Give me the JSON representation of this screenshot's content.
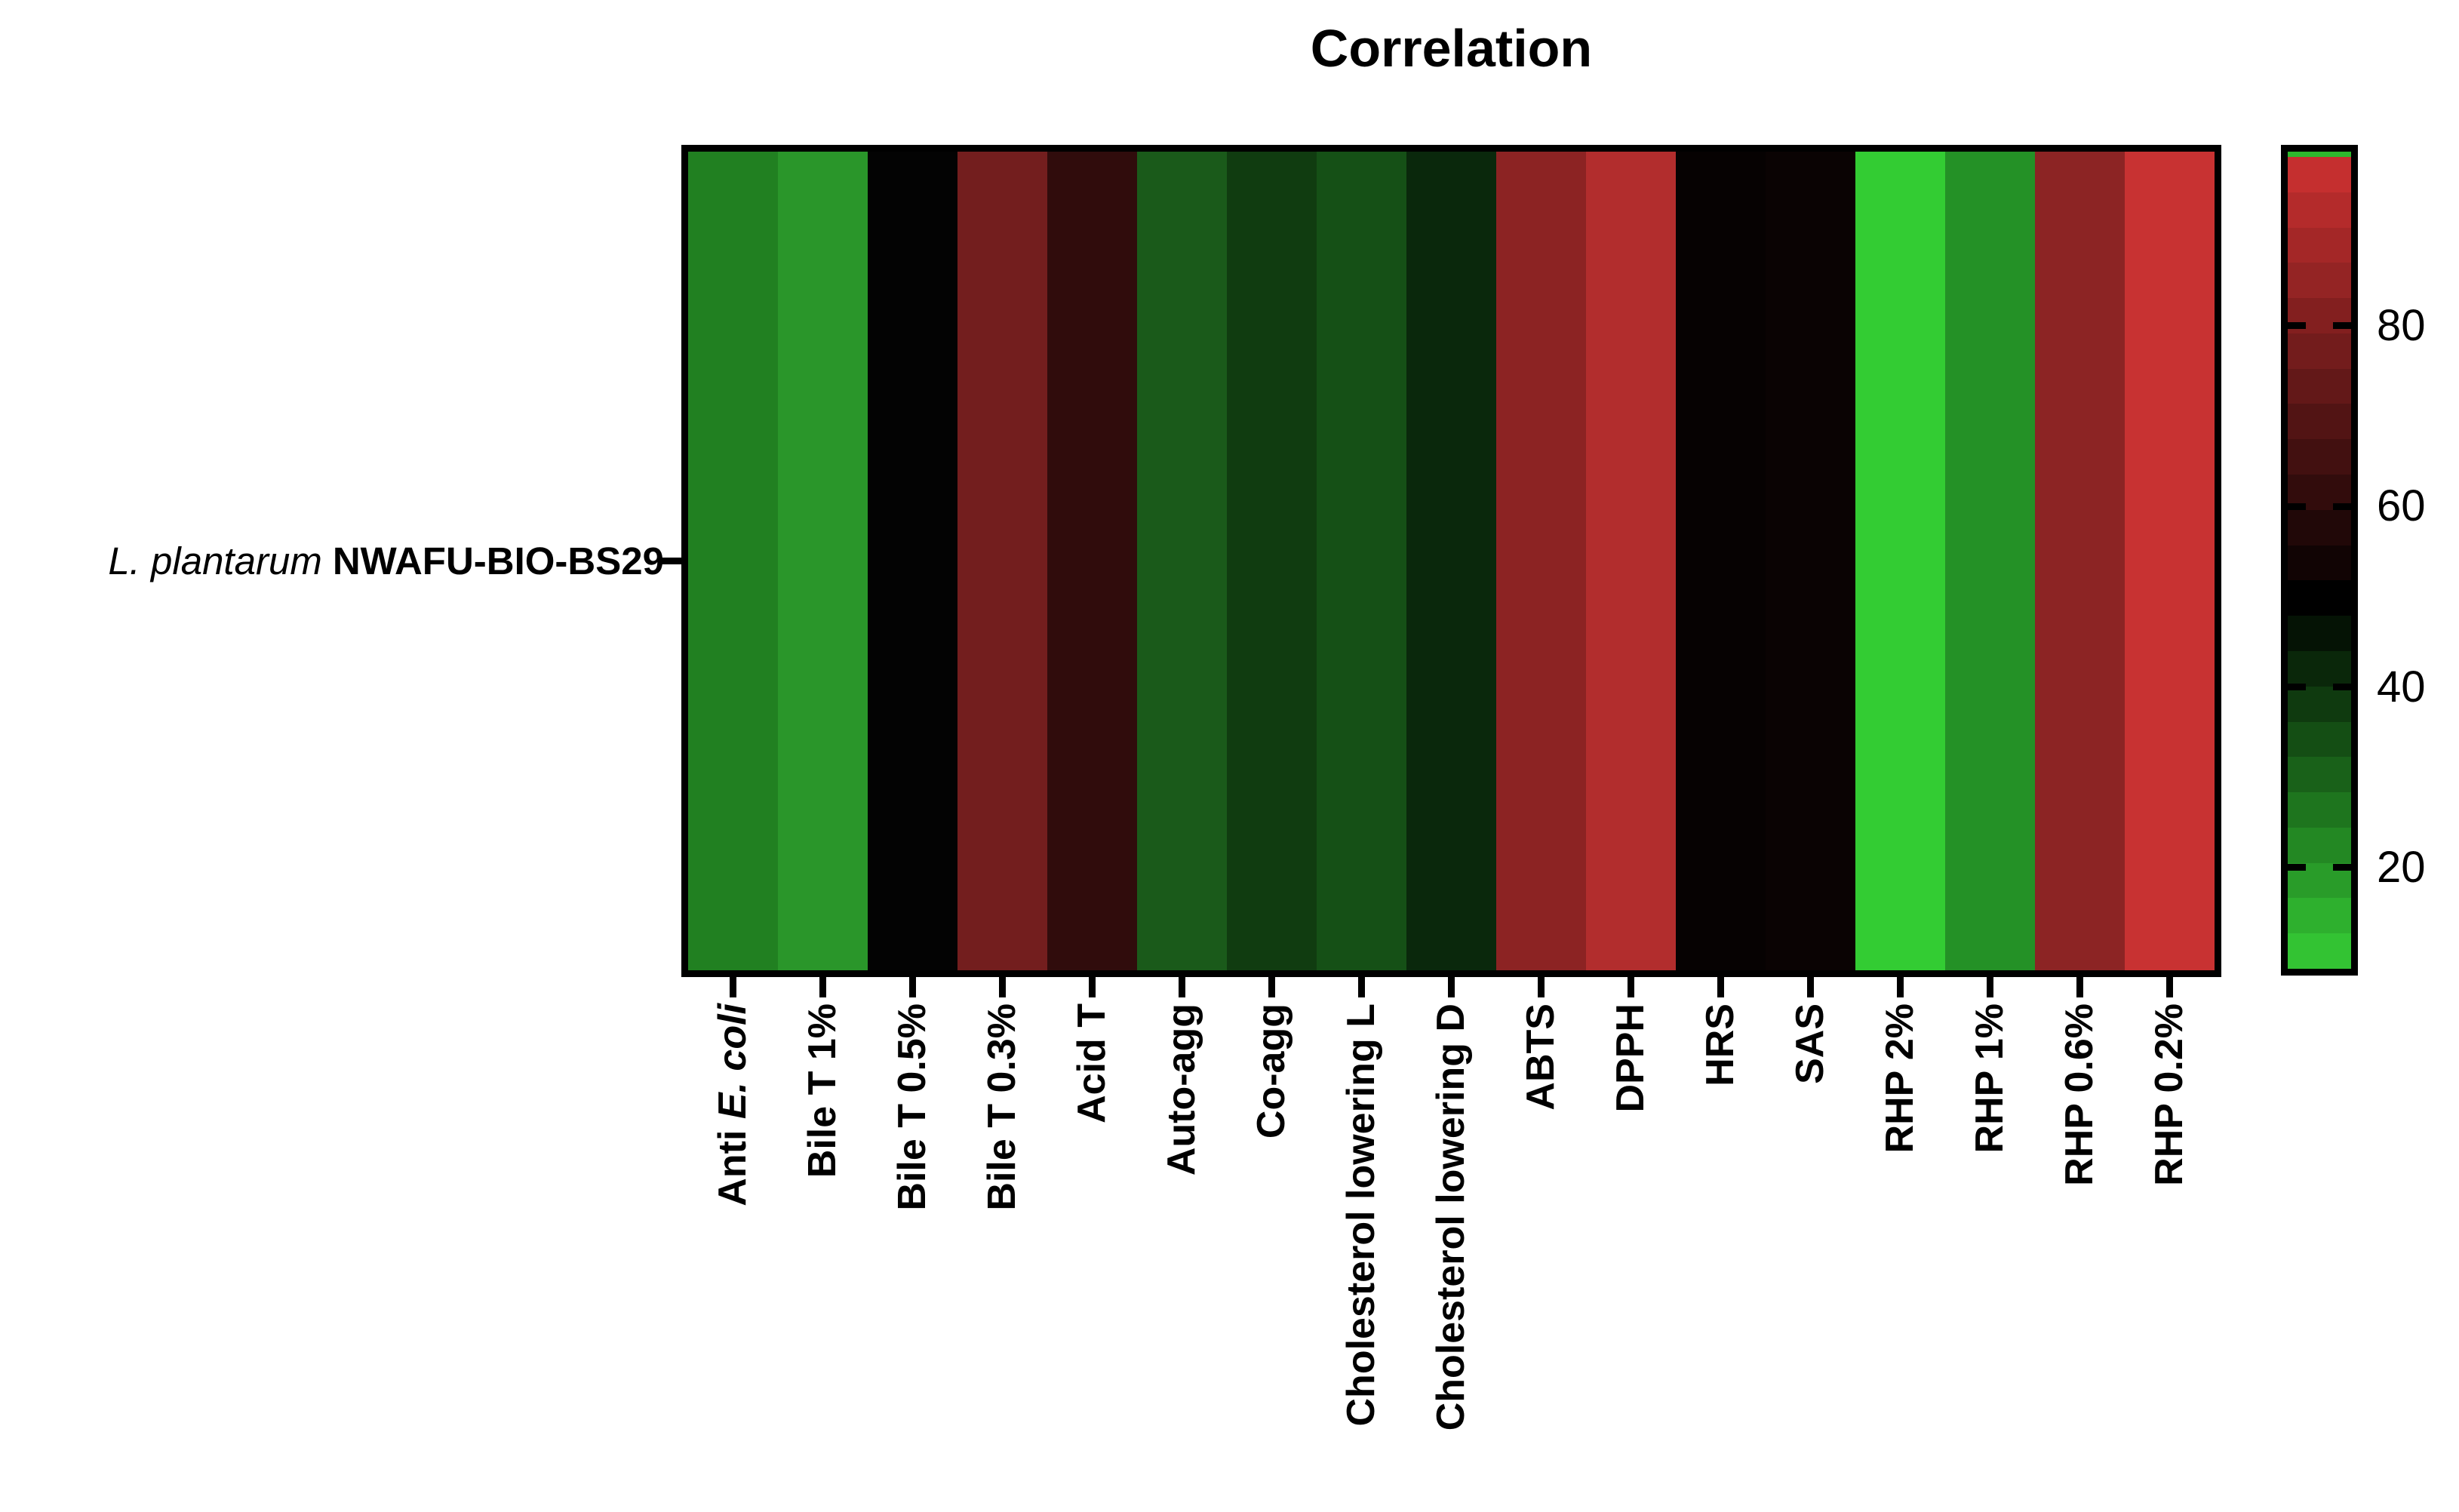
{
  "figure": {
    "row_label": {
      "italic": "L. plantarum",
      "bold": "NWAFU-BIO-BS29",
      "full": "L. plantarum NWAFU-BIO-BS29"
    },
    "colors": {
      "background": "#ffffff",
      "border": "#000000",
      "text": "#000000"
    }
  },
  "chart_data": {
    "type": "heatmap",
    "title": "Correlation",
    "rows": [
      "L. plantarum NWAFU-BIO-BS29"
    ],
    "legend_position": "right",
    "column_label_rotation": -90,
    "grid": false,
    "columns": [
      {
        "label": "Anti E. coli",
        "value": 24,
        "color": "#218021",
        "segments": [
          {
            "text": "Anti ",
            "italic": false
          },
          {
            "text": "E. coli",
            "italic": true
          }
        ]
      },
      {
        "label": "Bile T 1%",
        "value": 20,
        "color": "#2A962A"
      },
      {
        "label": "Bile T 0.5%",
        "value": 50,
        "color": "#030303"
      },
      {
        "label": "Bile T 0.3%",
        "value": 78,
        "color": "#731E1E"
      },
      {
        "label": "Acid T",
        "value": 62,
        "color": "#300C0C"
      },
      {
        "label": "Auto-agg",
        "value": 32,
        "color": "#1A5A1A"
      },
      {
        "label": "Co-agg",
        "value": 38,
        "color": "#103C10"
      },
      {
        "label": "Cholesterol lowering L",
        "value": 34,
        "color": "#155016"
      },
      {
        "label": "Cholesterol lowering D",
        "value": 42,
        "color": "#0A280C"
      },
      {
        "label": "ABTS",
        "value": 84,
        "color": "#8C2323"
      },
      {
        "label": "DPPH",
        "value": 93,
        "color": "#B22D2D"
      },
      {
        "label": "HRS",
        "value": 51,
        "color": "#060202"
      },
      {
        "label": "SAS",
        "value": 51,
        "color": "#0A0303"
      },
      {
        "label": "RHP 2%",
        "value": 9,
        "color": "#33CC33"
      },
      {
        "label": "RHP 1%",
        "value": 21,
        "color": "#249126"
      },
      {
        "label": "RHP 0.6%",
        "value": 84,
        "color": "#8C2424"
      },
      {
        "label": "RHP 0.2%",
        "value": 98,
        "color": "#C83232"
      }
    ],
    "colorbar": {
      "orientation": "vertical",
      "scheme": "green-black-red",
      "scale_top": 99.3,
      "scale_bottom": 8.8,
      "midpoint_black": 50,
      "ticks": [
        80,
        60,
        40,
        20
      ],
      "steps": 23,
      "top_sliver_color": "#2DB82D",
      "top_color": "#CD3131",
      "mid_color": "#000000",
      "bottom_color": "#33CD33"
    }
  }
}
